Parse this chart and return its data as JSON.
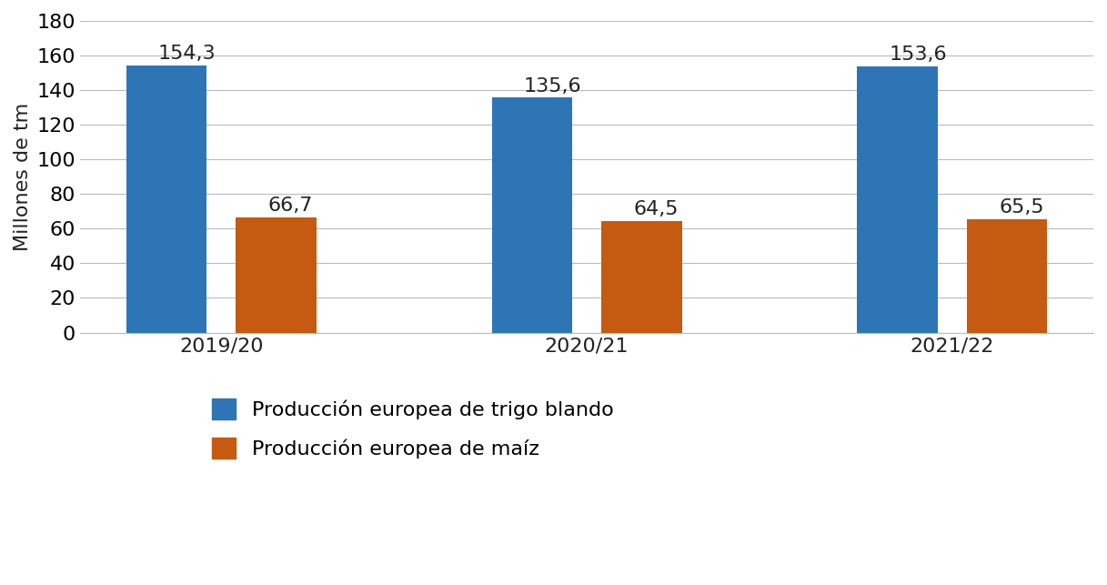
{
  "categories": [
    "2019/20",
    "2020/21",
    "2021/22"
  ],
  "trigo_blando": [
    154.3,
    135.6,
    153.6
  ],
  "maiz": [
    66.7,
    64.5,
    65.5
  ],
  "trigo_color": "#2E75B6",
  "maiz_color": "#C55A11",
  "ylabel": "Millones de tm",
  "ylim": [
    0,
    180
  ],
  "yticks": [
    0,
    20,
    40,
    60,
    80,
    100,
    120,
    140,
    160,
    180
  ],
  "legend_trigo": "Producción europea de trigo blando",
  "legend_maiz": "Producción europea de maíz",
  "bar_width": 0.22,
  "bar_gap": 0.08,
  "label_fontsize": 16,
  "tick_fontsize": 16,
  "ylabel_fontsize": 16,
  "legend_fontsize": 16,
  "annotation_fontsize": 16,
  "background_color": "#FFFFFF",
  "grid_color": "#BBBBBB",
  "grid_linewidth": 0.8
}
